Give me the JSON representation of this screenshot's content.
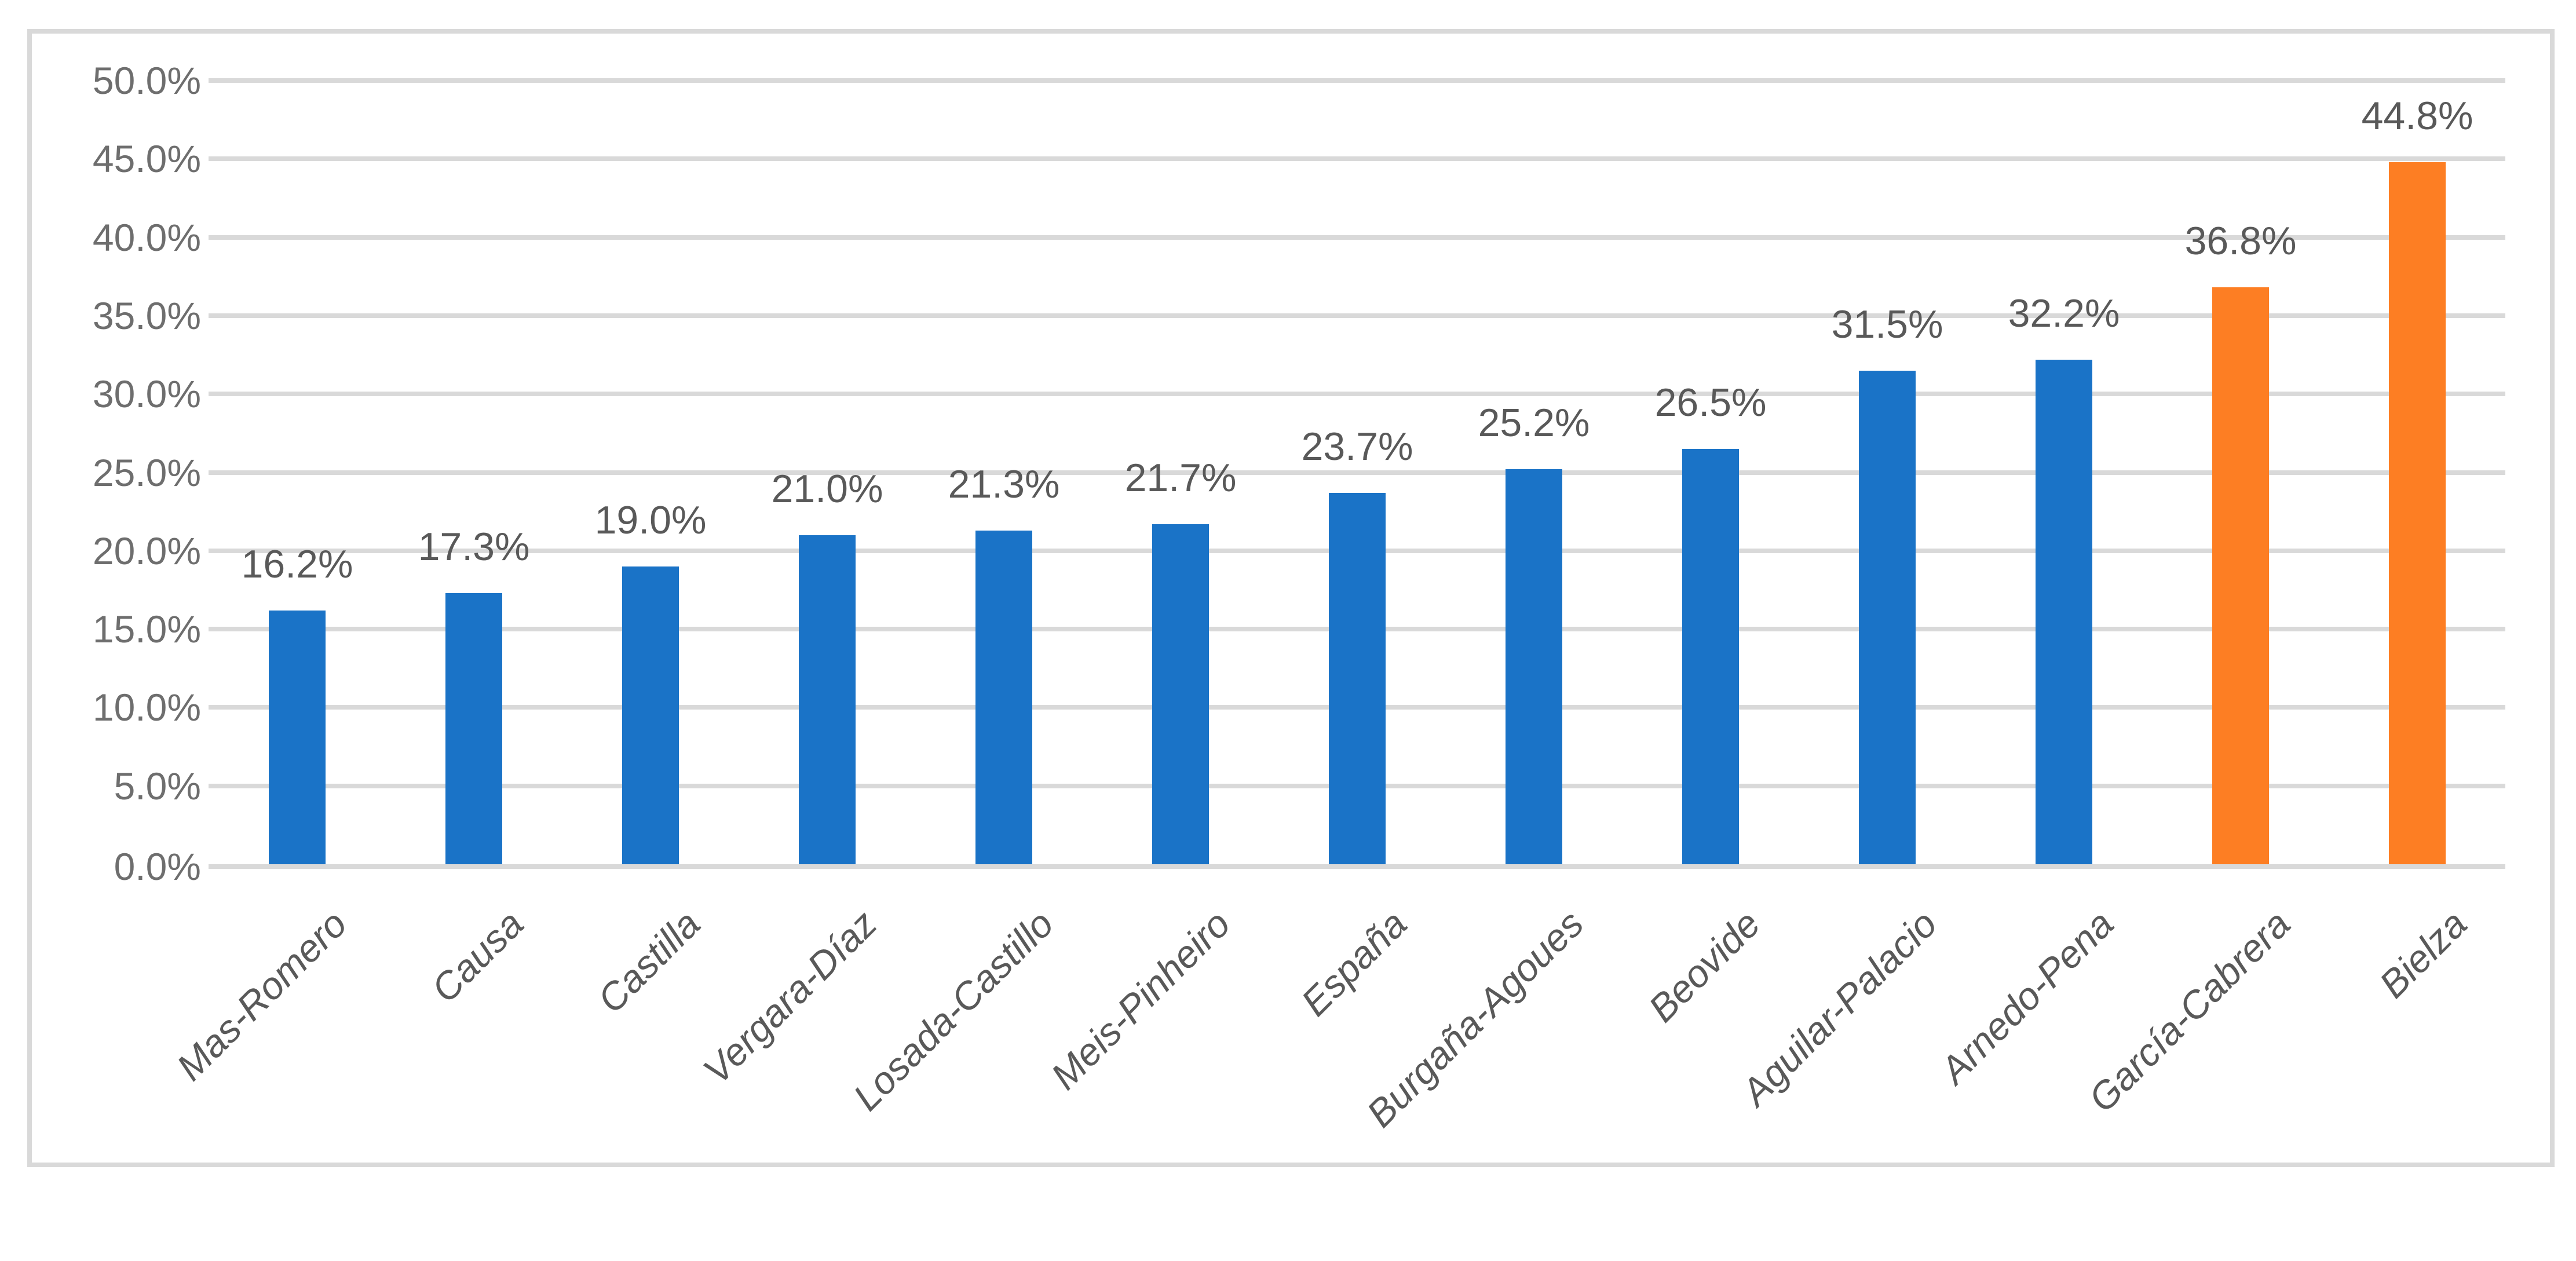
{
  "chart_data": {
    "type": "bar",
    "title": "",
    "xlabel": "",
    "ylabel": "",
    "legend": "none",
    "grid": "horizontal",
    "categories": [
      "Mas-Romero",
      "Causa",
      "Castilla",
      "Vergara-Díaz",
      "Losada-Castillo",
      "Meis-Pinheiro",
      "España",
      "Burgaña-Agoues",
      "Beovide",
      "Aguilar-Palacio",
      "Arnedo-Pena",
      "García-Cabrera",
      "Bielza"
    ],
    "values": [
      16.2,
      17.3,
      19.0,
      21.0,
      21.3,
      21.7,
      23.7,
      25.2,
      26.5,
      31.5,
      32.2,
      36.8,
      44.8
    ],
    "value_labels": [
      "16.2%",
      "17.3%",
      "19.0%",
      "21.0%",
      "21.3%",
      "21.7%",
      "23.7%",
      "25.2%",
      "26.5%",
      "31.5%",
      "32.2%",
      "36.8%",
      "44.8%"
    ],
    "bar_colors": [
      "#1A73C7",
      "#1A73C7",
      "#1A73C7",
      "#1A73C7",
      "#1A73C7",
      "#1A73C7",
      "#1A73C7",
      "#1A73C7",
      "#1A73C7",
      "#1A73C7",
      "#1A73C7",
      "#FD7E23",
      "#FD7E23"
    ],
    "highlight_indices": [
      11,
      12
    ],
    "ylim": [
      0,
      50
    ],
    "ytick_step": 5,
    "ytick_labels": [
      "0.0%",
      "5.0%",
      "10.0%",
      "15.0%",
      "20.0%",
      "25.0%",
      "30.0%",
      "35.0%",
      "40.0%",
      "45.0%",
      "50.0%"
    ],
    "colors": {
      "bar_primary": "#1A73C7",
      "bar_highlight": "#FD7E23",
      "gridline": "#D9D9D9",
      "axis_line": "#D9D9D9",
      "frame_border": "#D9D9D9",
      "ytick_label": "#6E6E6E",
      "data_label": "#595959",
      "xtick_label": "#595959",
      "background": "#FFFFFF"
    }
  }
}
